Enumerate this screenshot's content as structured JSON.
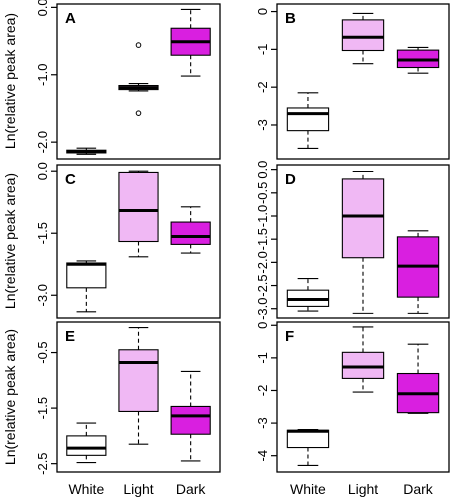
{
  "figure": {
    "ylabel": "Ln(relative peak area)",
    "categories": [
      "White",
      "Light",
      "Dark"
    ]
  },
  "colors": {
    "white_box": "#ffffff",
    "light_box": "#f0b8f4",
    "dark_box": "#d91fe0",
    "stroke": "#000000"
  },
  "chart_data": [
    {
      "type": "boxplot",
      "panel": "A",
      "categories": [
        "White",
        "Light",
        "Dark"
      ],
      "ylim": [
        -2.25,
        0.05
      ],
      "yticks": [
        0,
        -1,
        -2
      ],
      "ytick_labels": [
        "0.0",
        "-1.0",
        "-2.0"
      ],
      "boxes": [
        {
          "category": "White",
          "min": -2.18,
          "q1": -2.16,
          "median": -2.14,
          "q3": -2.12,
          "max": -2.09,
          "outliers": [],
          "color": "#ffffff"
        },
        {
          "category": "Light",
          "min": -1.24,
          "q1": -1.22,
          "median": -1.19,
          "q3": -1.16,
          "max": -1.13,
          "outliers": [
            -0.56,
            -1.57
          ],
          "color": "#f0b8f4"
        },
        {
          "category": "Dark",
          "min": -1.02,
          "q1": -0.71,
          "median": -0.51,
          "q3": -0.31,
          "max": -0.03,
          "outliers": [],
          "color": "#d91fe0"
        }
      ]
    },
    {
      "type": "boxplot",
      "panel": "B",
      "categories": [
        "White",
        "Light",
        "Dark"
      ],
      "ylim": [
        -3.9,
        0.2
      ],
      "yticks": [
        0,
        -1,
        -2,
        -3
      ],
      "ytick_labels": [
        "0",
        "-1",
        "-2",
        "-3"
      ],
      "boxes": [
        {
          "category": "White",
          "min": -3.62,
          "q1": -3.15,
          "median": -2.7,
          "q3": -2.55,
          "max": -2.15,
          "outliers": [],
          "color": "#ffffff"
        },
        {
          "category": "Light",
          "min": -1.38,
          "q1": -1.03,
          "median": -0.68,
          "q3": -0.22,
          "max": -0.05,
          "outliers": [],
          "color": "#f0b8f4"
        },
        {
          "category": "Dark",
          "min": -1.63,
          "q1": -1.48,
          "median": -1.28,
          "q3": -1.02,
          "max": -0.95,
          "outliers": [],
          "color": "#d91fe0"
        }
      ]
    },
    {
      "type": "boxplot",
      "panel": "C",
      "categories": [
        "White",
        "Light",
        "Dark"
      ],
      "ylim": [
        -3.55,
        0.15
      ],
      "yticks": [
        0,
        -1.5,
        -3
      ],
      "ytick_labels": [
        "0.0",
        "-1.5",
        "-3.0"
      ],
      "boxes": [
        {
          "category": "White",
          "min": -3.4,
          "q1": -2.82,
          "median": -2.25,
          "q3": -2.22,
          "max": -2.17,
          "outliers": [],
          "color": "#ffffff"
        },
        {
          "category": "Light",
          "min": -2.07,
          "q1": -1.7,
          "median": -0.95,
          "q3": -0.03,
          "max": 0.0,
          "outliers": [],
          "color": "#f0b8f4"
        },
        {
          "category": "Dark",
          "min": -1.98,
          "q1": -1.77,
          "median": -1.58,
          "q3": -1.23,
          "max": -0.86,
          "outliers": [],
          "color": "#d91fe0"
        }
      ]
    },
    {
      "type": "boxplot",
      "panel": "D",
      "categories": [
        "White",
        "Light",
        "Dark"
      ],
      "ylim": [
        -3.2,
        0.1
      ],
      "yticks": [
        0,
        -0.5,
        -1,
        -1.5,
        -2,
        -2.5,
        -3
      ],
      "ytick_labels": [
        "0.0",
        "-0.5",
        "-1.0",
        "-1.5",
        "-2.0",
        "-2.5",
        "-3.0"
      ],
      "boxes": [
        {
          "category": "White",
          "min": -3.05,
          "q1": -2.95,
          "median": -2.8,
          "q3": -2.6,
          "max": -2.35,
          "outliers": [],
          "color": "#ffffff"
        },
        {
          "category": "Light",
          "min": -3.1,
          "q1": -1.9,
          "median": -1.0,
          "q3": -0.2,
          "max": -0.04,
          "outliers": [],
          "color": "#f0b8f4"
        },
        {
          "category": "Dark",
          "min": -3.1,
          "q1": -2.75,
          "median": -2.08,
          "q3": -1.45,
          "max": -1.32,
          "outliers": [],
          "color": "#d91fe0"
        }
      ]
    },
    {
      "type": "boxplot",
      "panel": "E",
      "categories": [
        "White",
        "Light",
        "Dark"
      ],
      "ylim": [
        -2.65,
        0.05
      ],
      "yticks": [
        -0.5,
        -1.5,
        -2.5
      ],
      "ytick_labels": [
        "-0.5",
        "-1.5",
        "-2.5"
      ],
      "boxes": [
        {
          "category": "White",
          "min": -2.48,
          "q1": -2.35,
          "median": -2.22,
          "q3": -2.0,
          "max": -1.77,
          "outliers": [],
          "color": "#ffffff"
        },
        {
          "category": "Light",
          "min": -2.15,
          "q1": -1.56,
          "median": -0.68,
          "q3": -0.45,
          "max": -0.05,
          "outliers": [],
          "color": "#f0b8f4"
        },
        {
          "category": "Dark",
          "min": -2.45,
          "q1": -1.97,
          "median": -1.64,
          "q3": -1.47,
          "max": -0.84,
          "outliers": [],
          "color": "#d91fe0"
        }
      ]
    },
    {
      "type": "boxplot",
      "panel": "F",
      "categories": [
        "White",
        "Light",
        "Dark"
      ],
      "ylim": [
        -4.5,
        0.1
      ],
      "yticks": [
        0,
        -1,
        -2,
        -3,
        -4
      ],
      "ytick_labels": [
        "0",
        "-1",
        "-2",
        "-3",
        "-4"
      ],
      "boxes": [
        {
          "category": "White",
          "min": -4.3,
          "q1": -3.75,
          "median": -3.25,
          "q3": -3.22,
          "max": -3.2,
          "outliers": [],
          "color": "#ffffff"
        },
        {
          "category": "Light",
          "min": -2.05,
          "q1": -1.63,
          "median": -1.28,
          "q3": -0.83,
          "max": -0.05,
          "outliers": [],
          "color": "#f0b8f4"
        },
        {
          "category": "Dark",
          "min": -2.7,
          "q1": -2.68,
          "median": -2.1,
          "q3": -1.48,
          "max": -0.58,
          "outliers": [],
          "color": "#d91fe0"
        }
      ]
    }
  ]
}
